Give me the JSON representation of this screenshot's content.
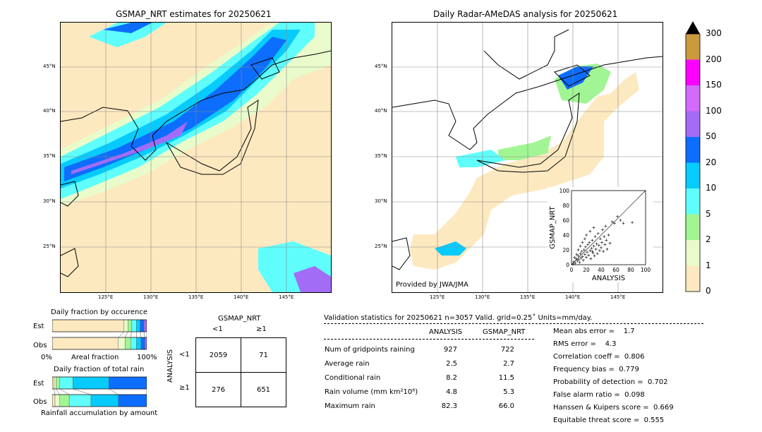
{
  "left_map": {
    "title": "GSMAP_NRT estimates for 20250621",
    "lat_ticks": [
      "45°N",
      "40°N",
      "35°N",
      "30°N",
      "25°N"
    ],
    "lon_ticks": [
      "125°E",
      "130°E",
      "135°E",
      "140°E",
      "145°E"
    ]
  },
  "right_map": {
    "title": "Daily Radar-AMeDAS analysis for 20250621",
    "lat_ticks": [
      "45°N",
      "40°N",
      "35°N",
      "30°N",
      "25°N"
    ],
    "lon_ticks": [
      "125°E",
      "130°E",
      "135°E",
      "140°E",
      "145°E"
    ],
    "credit": "Provided by JWA/JMA"
  },
  "colorbar": {
    "labels": [
      "0",
      "1",
      "2",
      "5",
      "10",
      "20",
      "50",
      "100",
      "150",
      "200",
      "300"
    ],
    "colors": [
      "#fde9c0",
      "#e9fbcb",
      "#a2f594",
      "#5ffefc",
      "#08cbfd",
      "#0d6dfd",
      "#a36cf6",
      "#d46afc",
      "#fb00fd",
      "#cb9a3e"
    ],
    "extend_color": "#000000"
  },
  "scatter": {
    "xlabel": "ANALYSIS",
    "ylabel": "GSMAP_NRT",
    "x_ticks": [
      "0",
      "20",
      "40",
      "60",
      "80",
      "100"
    ],
    "y_ticks": [
      "0",
      "20",
      "40",
      "60",
      "80",
      "100"
    ]
  },
  "occurrence": {
    "title": "Daily fraction by occurence",
    "row_labels": [
      "Est",
      "Obs"
    ],
    "xlabel": "Areal fraction",
    "x_left": "0%",
    "x_right": "100%"
  },
  "total_rain": {
    "title": "Daily fraction of total rain",
    "row_labels": [
      "Est",
      "Obs"
    ],
    "footer": "Rainfall accumulation by amount"
  },
  "contingency": {
    "col_title": "GSMAP_NRT",
    "col_labels": [
      "<1",
      "≥1"
    ],
    "row_title": "ANALYSIS",
    "row_labels": [
      "<1",
      "≥1"
    ],
    "cells": [
      [
        "2059",
        "71"
      ],
      [
        "276",
        "651"
      ]
    ]
  },
  "validation": {
    "header": "Validation statistics for 20250621  n=3057 Valid. grid=0.25˚ Units=mm/day.",
    "col_analysis": "ANALYSIS",
    "col_gsmap": "GSMAP_NRT",
    "rows": [
      {
        "label": "Num of gridpoints raining",
        "analysis": "927",
        "gsmap": "722"
      },
      {
        "label": "Average rain",
        "analysis": "2.5",
        "gsmap": "2.7"
      },
      {
        "label": "Conditional rain",
        "analysis": "8.2",
        "gsmap": "11.5"
      },
      {
        "label": "Rain volume (mm km²10⁶)",
        "analysis": "4.8",
        "gsmap": "5.3"
      },
      {
        "label": "Maximum rain",
        "analysis": "82.3",
        "gsmap": "66.0"
      }
    ],
    "scores": [
      "Mean abs error =    1.7",
      "RMS error =    4.3",
      "Correlation coeff =  0.806",
      "Frequency bias =  0.779",
      "Probability of detection =  0.702",
      "False alarm ratio =  0.098",
      "Hanssen & Kuipers score =  0.669",
      "Equitable threat score =  0.555"
    ]
  },
  "chart_data": [
    {
      "type": "bar",
      "title": "Daily fraction by occurence",
      "categories": [
        "Est",
        "Obs"
      ],
      "series_colors": [
        "#fde9c0",
        "#e9fbcb",
        "#a2f594",
        "#5ffefc",
        "#08cbfd",
        "#0d6dfd",
        "#a36cf6"
      ],
      "series": [
        {
          "values": [
            0.76,
            0.7
          ]
        },
        {
          "values": [
            0.04,
            0.07
          ]
        },
        {
          "values": [
            0.04,
            0.06
          ]
        },
        {
          "values": [
            0.05,
            0.06
          ]
        },
        {
          "values": [
            0.04,
            0.05
          ]
        },
        {
          "values": [
            0.04,
            0.04
          ]
        },
        {
          "values": [
            0.03,
            0.02
          ]
        }
      ],
      "xlabel": "Areal fraction"
    },
    {
      "type": "bar",
      "title": "Daily fraction of total rain",
      "categories": [
        "Est",
        "Obs"
      ],
      "series_colors": [
        "#fde9c0",
        "#e9fbcb",
        "#a2f594",
        "#5ffefc",
        "#08cbfd",
        "#0d6dfd",
        "#a36cf6"
      ],
      "series": [
        {
          "values": [
            0.02,
            0.03
          ]
        },
        {
          "values": [
            0.02,
            0.05
          ]
        },
        {
          "values": [
            0.04,
            0.1
          ]
        },
        {
          "values": [
            0.14,
            0.23
          ]
        },
        {
          "values": [
            0.38,
            0.29
          ]
        },
        {
          "values": [
            0.4,
            0.3
          ]
        },
        {
          "values": [
            0.0,
            0.0
          ]
        }
      ],
      "xlabel": "Rainfall accumulation by amount"
    },
    {
      "type": "scatter",
      "xlabel": "ANALYSIS",
      "ylabel": "GSMAP_NRT",
      "xlim": [
        0,
        100
      ],
      "ylim": [
        0,
        100
      ],
      "points": [
        [
          2,
          1
        ],
        [
          3,
          4
        ],
        [
          5,
          2
        ],
        [
          6,
          8
        ],
        [
          8,
          5
        ],
        [
          9,
          12
        ],
        [
          10,
          7
        ],
        [
          11,
          3
        ],
        [
          12,
          15
        ],
        [
          13,
          9
        ],
        [
          14,
          18
        ],
        [
          15,
          11
        ],
        [
          16,
          6
        ],
        [
          17,
          20
        ],
        [
          18,
          14
        ],
        [
          19,
          24
        ],
        [
          20,
          10
        ],
        [
          21,
          17
        ],
        [
          22,
          27
        ],
        [
          23,
          13
        ],
        [
          24,
          30
        ],
        [
          25,
          19
        ],
        [
          26,
          8
        ],
        [
          27,
          22
        ],
        [
          28,
          33
        ],
        [
          29,
          16
        ],
        [
          30,
          25
        ],
        [
          31,
          12
        ],
        [
          32,
          38
        ],
        [
          33,
          21
        ],
        [
          34,
          28
        ],
        [
          35,
          15
        ],
        [
          36,
          42
        ],
        [
          37,
          26
        ],
        [
          38,
          19
        ],
        [
          39,
          35
        ],
        [
          40,
          23
        ],
        [
          41,
          30
        ],
        [
          42,
          47
        ],
        [
          43,
          18
        ],
        [
          44,
          38
        ],
        [
          45,
          27
        ],
        [
          46,
          52
        ],
        [
          47,
          33
        ],
        [
          48,
          21
        ],
        [
          50,
          40
        ],
        [
          52,
          29
        ],
        [
          55,
          58
        ],
        [
          58,
          56
        ],
        [
          62,
          65
        ],
        [
          66,
          60
        ],
        [
          70,
          56
        ],
        [
          82,
          57
        ],
        [
          4,
          10
        ],
        [
          7,
          14
        ],
        [
          9,
          20
        ],
        [
          12,
          25
        ],
        [
          15,
          30
        ],
        [
          18,
          35
        ],
        [
          20,
          40
        ],
        [
          25,
          45
        ],
        [
          28,
          18
        ],
        [
          30,
          50
        ]
      ]
    }
  ]
}
